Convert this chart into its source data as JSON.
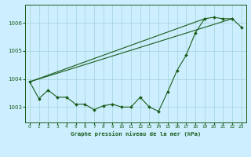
{
  "title": "Graphe pression niveau de la mer (hPa)",
  "background_color": "#cceeff",
  "line_color": "#1a5c1a",
  "grid_color": "#99cccc",
  "xlim": [
    -0.5,
    23.5
  ],
  "ylim": [
    1002.45,
    1006.65
  ],
  "yticks": [
    1003,
    1004,
    1005,
    1006
  ],
  "xticks": [
    0,
    1,
    2,
    3,
    4,
    5,
    6,
    7,
    8,
    9,
    10,
    11,
    12,
    13,
    14,
    15,
    16,
    17,
    18,
    19,
    20,
    21,
    22,
    23
  ],
  "measured": [
    1003.9,
    1003.3,
    1003.6,
    1003.35,
    1003.35,
    1003.1,
    1003.1,
    1002.9,
    1003.05,
    1003.1,
    1003.0,
    1003.0,
    1003.35,
    1003.0,
    1002.85,
    1003.55,
    1004.3,
    1004.85,
    1005.65,
    1006.15,
    1006.2,
    1006.15,
    1006.15,
    1005.85
  ],
  "diag_line1_x": [
    0,
    19
  ],
  "diag_line1_y": [
    1003.9,
    1006.15
  ],
  "diag_line2_x": [
    0,
    22
  ],
  "diag_line2_y": [
    1003.9,
    1006.15
  ]
}
